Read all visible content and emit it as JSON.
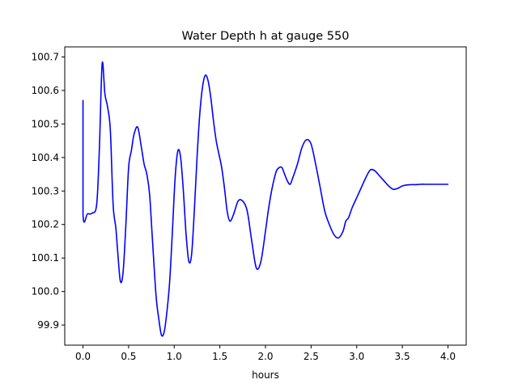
{
  "chart_data": {
    "type": "line",
    "title": "Water Depth h at gauge 550",
    "xlabel": "hours",
    "ylabel": "",
    "xlim": [
      -0.2,
      4.2
    ],
    "ylim": [
      99.84,
      100.73
    ],
    "grid": false,
    "xticks": [
      0.0,
      0.5,
      1.0,
      1.5,
      2.0,
      2.5,
      3.0,
      3.5,
      4.0
    ],
    "xtick_labels": [
      "0.0",
      "0.5",
      "1.0",
      "1.5",
      "2.0",
      "2.5",
      "3.0",
      "3.5",
      "4.0"
    ],
    "yticks": [
      99.9,
      100.0,
      100.1,
      100.2,
      100.3,
      100.4,
      100.5,
      100.6,
      100.7
    ],
    "ytick_labels": [
      "99.9",
      "100.0",
      "100.1",
      "100.2",
      "100.3",
      "100.4",
      "100.5",
      "100.6",
      "100.7"
    ],
    "series": [
      {
        "color": "#0000ff",
        "x": [
          0.0,
          0.0,
          0.05,
          0.1,
          0.15,
          0.18,
          0.21,
          0.24,
          0.27,
          0.3,
          0.33,
          0.36,
          0.38,
          0.41,
          0.44,
          0.47,
          0.5,
          0.53,
          0.56,
          0.6,
          0.64,
          0.67,
          0.7,
          0.73,
          0.76,
          0.8,
          0.83,
          0.86,
          0.89,
          0.92,
          0.95,
          0.98,
          1.01,
          1.04,
          1.07,
          1.1,
          1.13,
          1.16,
          1.19,
          1.22,
          1.25,
          1.28,
          1.31,
          1.34,
          1.37,
          1.4,
          1.43,
          1.46,
          1.49,
          1.52,
          1.55,
          1.58,
          1.61,
          1.65,
          1.7,
          1.75,
          1.8,
          1.85,
          1.9,
          1.95,
          2.0,
          2.03,
          2.06,
          2.09,
          2.12,
          2.15,
          2.18,
          2.21,
          2.24,
          2.27,
          2.3,
          2.35,
          2.4,
          2.45,
          2.5,
          2.55,
          2.6,
          2.65,
          2.7,
          2.75,
          2.8,
          2.85,
          2.88,
          2.91,
          2.95,
          3.0,
          3.05,
          3.1,
          3.15,
          3.2,
          3.25,
          3.3,
          3.35,
          3.4,
          3.45,
          3.5,
          3.55,
          3.6,
          3.65,
          3.7,
          3.75,
          3.8,
          3.85,
          3.9,
          3.95,
          4.0
        ],
        "y": [
          100.57,
          100.232,
          100.232,
          100.234,
          100.26,
          100.43,
          100.68,
          100.59,
          100.55,
          100.48,
          100.26,
          100.19,
          100.12,
          100.03,
          100.06,
          100.2,
          100.37,
          100.42,
          100.47,
          100.49,
          100.43,
          100.38,
          100.35,
          100.29,
          100.16,
          99.99,
          99.92,
          99.87,
          99.88,
          99.94,
          100.03,
          100.18,
          100.34,
          100.42,
          100.4,
          100.3,
          100.17,
          100.09,
          100.11,
          100.24,
          100.4,
          100.53,
          100.61,
          100.645,
          100.63,
          100.58,
          100.51,
          100.45,
          100.41,
          100.37,
          100.31,
          100.24,
          100.21,
          100.23,
          100.27,
          100.27,
          100.24,
          100.15,
          100.07,
          100.09,
          100.18,
          100.24,
          100.29,
          100.33,
          100.36,
          100.37,
          100.37,
          100.35,
          100.33,
          100.32,
          100.34,
          100.38,
          100.43,
          100.453,
          100.44,
          100.38,
          100.31,
          100.24,
          100.2,
          100.17,
          100.16,
          100.18,
          100.21,
          100.22,
          100.25,
          100.28,
          100.31,
          100.34,
          100.363,
          100.36,
          100.345,
          100.33,
          100.315,
          100.305,
          100.308,
          100.315,
          100.318,
          100.319,
          100.319,
          100.32,
          100.32,
          100.32,
          100.32,
          100.32,
          100.32,
          100.32
        ]
      }
    ]
  }
}
